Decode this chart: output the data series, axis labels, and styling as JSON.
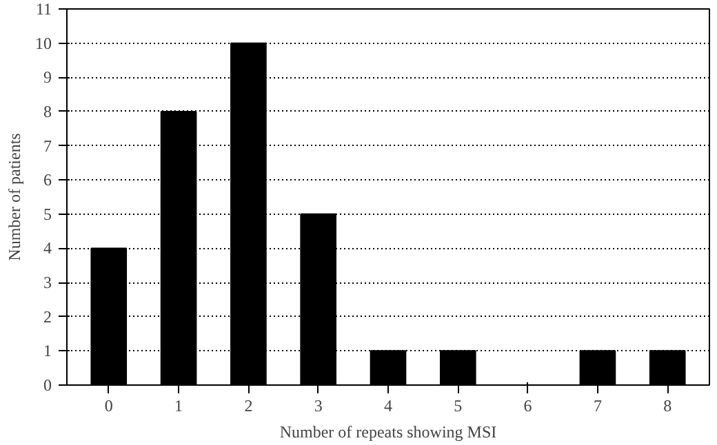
{
  "chart_data": {
    "type": "bar",
    "xlabel": "Number of repeats showing MSI",
    "ylabel": "Number of patients",
    "categories": [
      "0",
      "1",
      "2",
      "3",
      "4",
      "5",
      "6",
      "7",
      "8"
    ],
    "values": [
      4,
      8,
      10,
      5,
      1,
      1,
      0,
      1,
      1
    ],
    "color": "#000000",
    "ylim": [
      0,
      11
    ],
    "yticks": [
      0,
      1,
      2,
      3,
      4,
      5,
      6,
      7,
      8,
      9,
      10,
      11
    ],
    "grid": "y",
    "line_style": "dotted"
  }
}
